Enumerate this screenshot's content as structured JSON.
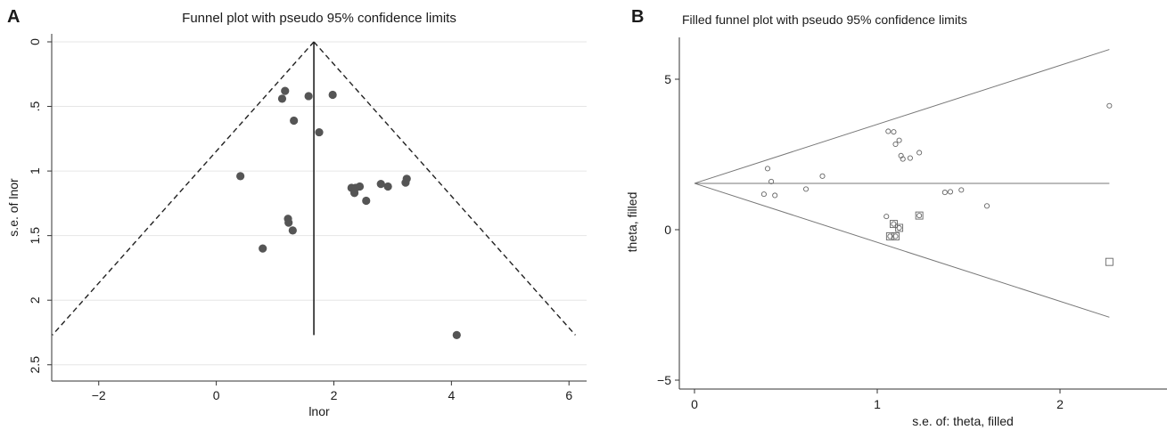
{
  "panels": {
    "a": {
      "letter": "A"
    },
    "b": {
      "letter": "B"
    }
  },
  "chart_data": [
    {
      "type": "scatter",
      "title": "Funnel plot with pseudo 95% confidence limits",
      "xlabel": "lnor",
      "ylabel": "s.e. of lnor",
      "xlim": [
        -2.8,
        6.3
      ],
      "ylim": [
        0,
        2.55
      ],
      "y_reversed": true,
      "xticks": [
        -2,
        0,
        2,
        4,
        6
      ],
      "xtick_labels": [
        "−2",
        "0",
        "2",
        "4",
        "6"
      ],
      "yticks": [
        0,
        0.5,
        1,
        1.5,
        2,
        2.5
      ],
      "ytick_labels": [
        "0",
        ".5",
        "1",
        "1.5",
        "2",
        "2.5"
      ],
      "grid": true,
      "pooled_estimate": 1.66,
      "se_max": 2.27,
      "points": [
        {
          "x": 1.17,
          "y": 0.38
        },
        {
          "x": 1.12,
          "y": 0.44
        },
        {
          "x": 1.57,
          "y": 0.42
        },
        {
          "x": 1.98,
          "y": 0.41
        },
        {
          "x": 1.32,
          "y": 0.61
        },
        {
          "x": 1.75,
          "y": 0.7
        },
        {
          "x": 0.41,
          "y": 1.04
        },
        {
          "x": 2.3,
          "y": 1.13
        },
        {
          "x": 2.35,
          "y": 1.17
        },
        {
          "x": 2.37,
          "y": 1.13
        },
        {
          "x": 2.44,
          "y": 1.12
        },
        {
          "x": 2.55,
          "y": 1.23
        },
        {
          "x": 2.8,
          "y": 1.1
        },
        {
          "x": 2.92,
          "y": 1.12
        },
        {
          "x": 3.22,
          "y": 1.09
        },
        {
          "x": 3.24,
          "y": 1.06
        },
        {
          "x": 1.22,
          "y": 1.37
        },
        {
          "x": 1.23,
          "y": 1.4
        },
        {
          "x": 1.3,
          "y": 1.46
        },
        {
          "x": 0.79,
          "y": 1.6
        },
        {
          "x": 4.09,
          "y": 2.27
        }
      ]
    },
    {
      "type": "scatter",
      "title": "Filled funnel plot with pseudo 95% confidence limits",
      "xlabel": "s.e. of: theta, filled",
      "ylabel": "theta, filled",
      "xlim": [
        0,
        2.65
      ],
      "ylim": [
        -5.2,
        6.1
      ],
      "xticks": [
        0,
        1,
        2
      ],
      "xtick_labels": [
        "0",
        "1",
        "2"
      ],
      "yticks": [
        -5,
        0,
        5
      ],
      "ytick_labels": [
        "−5",
        "0",
        "5"
      ],
      "grid": false,
      "pooled_estimate": 1.54,
      "se_max": 2.27,
      "observed": [
        {
          "x": 0.38,
          "y": 1.18
        },
        {
          "x": 0.4,
          "y": 2.03
        },
        {
          "x": 0.42,
          "y": 1.6
        },
        {
          "x": 0.44,
          "y": 1.14
        },
        {
          "x": 0.61,
          "y": 1.35
        },
        {
          "x": 0.7,
          "y": 1.78
        },
        {
          "x": 1.06,
          "y": 3.27
        },
        {
          "x": 1.09,
          "y": 3.25
        },
        {
          "x": 1.1,
          "y": 2.84
        },
        {
          "x": 1.12,
          "y": 2.97
        },
        {
          "x": 1.13,
          "y": 2.46
        },
        {
          "x": 1.14,
          "y": 2.35
        },
        {
          "x": 1.18,
          "y": 2.38
        },
        {
          "x": 1.23,
          "y": 2.56
        },
        {
          "x": 1.05,
          "y": 0.44
        },
        {
          "x": 1.09,
          "y": 0.19
        },
        {
          "x": 1.12,
          "y": 0.06
        },
        {
          "x": 1.23,
          "y": 0.47
        },
        {
          "x": 1.07,
          "y": -0.22
        },
        {
          "x": 1.1,
          "y": -0.22
        },
        {
          "x": 1.37,
          "y": 1.24
        },
        {
          "x": 1.4,
          "y": 1.26
        },
        {
          "x": 1.46,
          "y": 1.32
        },
        {
          "x": 1.6,
          "y": 0.79
        },
        {
          "x": 2.27,
          "y": 4.12
        }
      ],
      "filled": [
        {
          "x": 1.09,
          "y": 0.19
        },
        {
          "x": 1.12,
          "y": 0.06
        },
        {
          "x": 1.23,
          "y": 0.47
        },
        {
          "x": 1.07,
          "y": -0.22
        },
        {
          "x": 1.1,
          "y": -0.22
        },
        {
          "x": 2.27,
          "y": -1.07
        }
      ]
    }
  ]
}
